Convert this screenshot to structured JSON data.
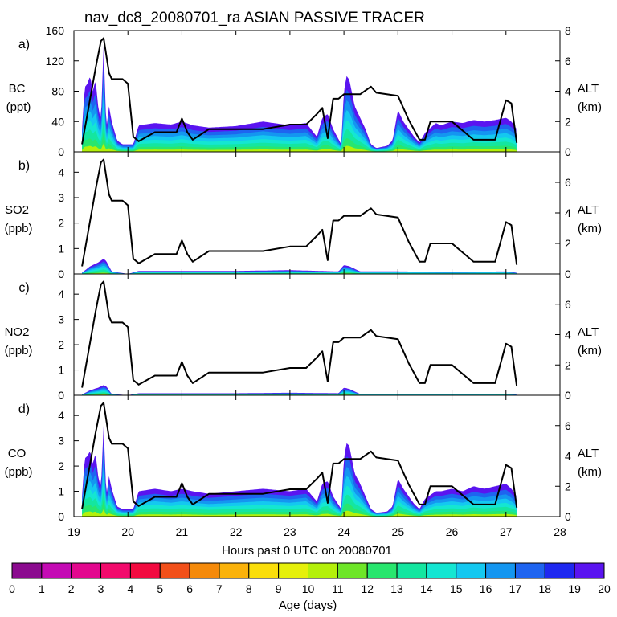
{
  "title": "nav_dc8_20080701_ra ASIAN PASSIVE TRACER",
  "xlabel": "Hours past 0 UTC on 20080701",
  "colorbar_label": "Age (days)",
  "colorbar_ticks": [
    "0",
    "1",
    "2",
    "3",
    "4",
    "5",
    "6",
    "7",
    "8",
    "9",
    "10",
    "11",
    "12",
    "13",
    "14",
    "15",
    "16",
    "17",
    "18",
    "19",
    "20"
  ],
  "colorbar_colors": [
    "#8b0a8f",
    "#c40ab4",
    "#e3078e",
    "#f20a6c",
    "#f20a40",
    "#f2501a",
    "#f58a0a",
    "#fab20a",
    "#fade0a",
    "#e6f00a",
    "#b4f00a",
    "#6ee628",
    "#28e66e",
    "#14e6a0",
    "#14e6d2",
    "#14c8f0",
    "#1496f0",
    "#1e64f0",
    "#1e28f0",
    "#5a14f0"
  ],
  "x_ticks": [
    "19",
    "20",
    "21",
    "22",
    "23",
    "24",
    "25",
    "26",
    "27",
    "28"
  ],
  "right_ticks_a": [
    "0",
    "2",
    "4",
    "6",
    "8"
  ],
  "right_ticks_bcd": [
    "0",
    "2",
    "4",
    "6"
  ],
  "alt_label": "ALT",
  "alt_unit": "(km)",
  "panels": [
    {
      "letter": "a)",
      "species": "BC",
      "unit": "(ppt)",
      "ticks": [
        "0",
        "40",
        "80",
        "120",
        "160"
      ]
    },
    {
      "letter": "b)",
      "species": "SO2",
      "unit": "(ppb)",
      "ticks": [
        "0",
        "1",
        "2",
        "3",
        "4"
      ]
    },
    {
      "letter": "c)",
      "species": "NO2",
      "unit": "(ppb)",
      "ticks": [
        "0",
        "1",
        "2",
        "3",
        "4"
      ]
    },
    {
      "letter": "d)",
      "species": "CO",
      "unit": "(ppb)",
      "ticks": [
        "0",
        "1",
        "2",
        "3",
        "4"
      ]
    }
  ],
  "chart_data": [
    {
      "type": "area",
      "title": "nav_dc8_20080701_ra ASIAN PASSIVE TRACER",
      "panel": "a)",
      "ylabel": "BC (ppt)",
      "y2label": "ALT (km)",
      "xlim": [
        19,
        28
      ],
      "ylim": [
        0,
        160
      ],
      "y2lim": [
        0,
        8
      ],
      "series": [
        {
          "name": "BC",
          "x": [
            19.15,
            19.2,
            19.25,
            19.3,
            19.35,
            19.4,
            19.45,
            19.5,
            19.55,
            19.6,
            19.65,
            19.7,
            19.8,
            19.9,
            20.0,
            20.1,
            20.2,
            20.5,
            20.8,
            21.0,
            21.2,
            21.5,
            22.0,
            22.5,
            23.0,
            23.3,
            23.5,
            23.6,
            23.7,
            23.8,
            23.95,
            24.0,
            24.05,
            24.1,
            24.2,
            24.3,
            24.4,
            24.5,
            24.6,
            24.8,
            24.9,
            25.0,
            25.1,
            25.2,
            25.3,
            25.4,
            25.5,
            25.7,
            25.8,
            26.0,
            26.2,
            26.4,
            26.6,
            26.8,
            27.0,
            27.1,
            27.2
          ],
          "y": [
            30,
            85,
            90,
            100,
            80,
            95,
            60,
            40,
            140,
            30,
            60,
            40,
            15,
            10,
            10,
            10,
            35,
            38,
            36,
            40,
            35,
            32,
            34,
            40,
            35,
            38,
            20,
            45,
            50,
            30,
            10,
            80,
            100,
            95,
            60,
            45,
            30,
            10,
            5,
            8,
            15,
            55,
            40,
            30,
            20,
            12,
            25,
            38,
            35,
            40,
            38,
            42,
            40,
            42,
            45,
            40,
            30
          ]
        },
        {
          "name": "ALT",
          "x": [
            19.15,
            19.3,
            19.4,
            19.5,
            19.55,
            19.65,
            19.7,
            19.8,
            19.9,
            20.0,
            20.1,
            20.2,
            20.5,
            20.9,
            21.0,
            21.1,
            21.2,
            21.5,
            21.7,
            22.0,
            22.5,
            23.0,
            23.3,
            23.5,
            23.6,
            23.7,
            23.8,
            23.9,
            24.0,
            24.3,
            24.5,
            24.6,
            25.0,
            25.2,
            25.4,
            25.5,
            25.6,
            25.9,
            26.0,
            26.4,
            26.5,
            26.8,
            27.0,
            27.1,
            27.2
          ],
          "y": [
            0.5,
            3.5,
            5.5,
            7.3,
            7.5,
            5.2,
            4.8,
            4.8,
            4.8,
            4.5,
            1.0,
            0.7,
            1.3,
            1.3,
            2.2,
            1.3,
            0.8,
            1.5,
            1.5,
            1.5,
            1.5,
            1.8,
            1.8,
            2.5,
            2.9,
            0.9,
            3.5,
            3.5,
            3.8,
            3.8,
            4.3,
            3.9,
            3.7,
            2.1,
            0.8,
            0.8,
            2.0,
            2.0,
            2.0,
            0.8,
            0.8,
            0.8,
            3.4,
            3.2,
            0.6
          ]
        }
      ]
    },
    {
      "type": "area",
      "panel": "b)",
      "ylabel": "SO2 (ppb)",
      "y2label": "ALT (km)",
      "xlim": [
        19,
        28
      ],
      "ylim": [
        0,
        4.8
      ],
      "y2lim": [
        0,
        8
      ],
      "series": [
        {
          "name": "SO2",
          "x": [
            19.15,
            19.3,
            19.45,
            19.55,
            19.6,
            19.7,
            20.0,
            20.2,
            21.0,
            22.0,
            23.0,
            23.9,
            24.0,
            24.1,
            24.3,
            25.0,
            26.0,
            27.0,
            27.2
          ],
          "y": [
            0.05,
            0.3,
            0.45,
            0.6,
            0.5,
            0.1,
            0.0,
            0.12,
            0.12,
            0.12,
            0.15,
            0.1,
            0.35,
            0.3,
            0.1,
            0.1,
            0.08,
            0.1,
            0.05
          ]
        },
        {
          "name": "ALT",
          "x": [
            19.15,
            19.3,
            19.4,
            19.5,
            19.55,
            19.65,
            19.7,
            19.8,
            19.9,
            20.0,
            20.1,
            20.2,
            20.5,
            20.9,
            21.0,
            21.1,
            21.2,
            21.5,
            21.7,
            22.0,
            22.5,
            23.0,
            23.3,
            23.5,
            23.6,
            23.7,
            23.8,
            23.9,
            24.0,
            24.3,
            24.5,
            24.6,
            25.0,
            25.2,
            25.4,
            25.5,
            25.6,
            25.9,
            26.0,
            26.4,
            26.5,
            26.8,
            27.0,
            27.1,
            27.2
          ],
          "y": [
            0.5,
            3.5,
            5.5,
            7.3,
            7.5,
            5.2,
            4.8,
            4.8,
            4.8,
            4.5,
            1.0,
            0.7,
            1.3,
            1.3,
            2.2,
            1.3,
            0.8,
            1.5,
            1.5,
            1.5,
            1.5,
            1.8,
            1.8,
            2.5,
            2.9,
            0.9,
            3.5,
            3.5,
            3.8,
            3.8,
            4.3,
            3.9,
            3.7,
            2.1,
            0.8,
            0.8,
            2.0,
            2.0,
            2.0,
            0.8,
            0.8,
            0.8,
            3.4,
            3.2,
            0.6
          ]
        }
      ]
    },
    {
      "type": "area",
      "panel": "c)",
      "ylabel": "NO2 (ppb)",
      "y2label": "ALT (km)",
      "xlim": [
        19,
        28
      ],
      "ylim": [
        0,
        4.8
      ],
      "y2lim": [
        0,
        8
      ],
      "series": [
        {
          "name": "NO2",
          "x": [
            19.15,
            19.3,
            19.45,
            19.55,
            19.6,
            19.7,
            20.0,
            20.2,
            21.0,
            22.0,
            23.0,
            23.9,
            24.0,
            24.1,
            24.3,
            25.0,
            26.0,
            27.0,
            27.2
          ],
          "y": [
            0.03,
            0.2,
            0.3,
            0.4,
            0.35,
            0.05,
            0.0,
            0.08,
            0.08,
            0.08,
            0.1,
            0.08,
            0.3,
            0.25,
            0.05,
            0.05,
            0.05,
            0.06,
            0.03
          ]
        },
        {
          "name": "ALT",
          "x": [
            19.15,
            19.3,
            19.4,
            19.5,
            19.55,
            19.65,
            19.7,
            19.8,
            19.9,
            20.0,
            20.1,
            20.2,
            20.5,
            20.9,
            21.0,
            21.1,
            21.2,
            21.5,
            21.7,
            22.0,
            22.5,
            23.0,
            23.3,
            23.5,
            23.6,
            23.7,
            23.8,
            23.9,
            24.0,
            24.3,
            24.5,
            24.6,
            25.0,
            25.2,
            25.4,
            25.5,
            25.6,
            25.9,
            26.0,
            26.4,
            26.5,
            26.8,
            27.0,
            27.1,
            27.2
          ],
          "y": [
            0.5,
            3.5,
            5.5,
            7.3,
            7.5,
            5.2,
            4.8,
            4.8,
            4.8,
            4.5,
            1.0,
            0.7,
            1.3,
            1.3,
            2.2,
            1.3,
            0.8,
            1.5,
            1.5,
            1.5,
            1.5,
            1.8,
            1.8,
            2.5,
            2.9,
            0.9,
            3.5,
            3.5,
            3.8,
            3.8,
            4.3,
            3.9,
            3.7,
            2.1,
            0.8,
            0.8,
            2.0,
            2.0,
            2.0,
            0.8,
            0.8,
            0.8,
            3.4,
            3.2,
            0.6
          ]
        }
      ]
    },
    {
      "type": "area",
      "panel": "d)",
      "ylabel": "CO (ppb)",
      "y2label": "ALT (km)",
      "xlim": [
        19,
        28
      ],
      "ylim": [
        0,
        4.8
      ],
      "y2lim": [
        0,
        8
      ],
      "series": [
        {
          "name": "CO",
          "x": [
            19.15,
            19.2,
            19.25,
            19.3,
            19.35,
            19.4,
            19.45,
            19.5,
            19.55,
            19.6,
            19.65,
            19.7,
            19.8,
            19.9,
            20.0,
            20.1,
            20.2,
            20.5,
            20.8,
            21.0,
            21.2,
            21.5,
            22.0,
            22.5,
            23.0,
            23.3,
            23.5,
            23.6,
            23.7,
            23.8,
            23.95,
            24.0,
            24.05,
            24.1,
            24.2,
            24.3,
            24.4,
            24.5,
            24.6,
            24.8,
            24.9,
            25.0,
            25.1,
            25.2,
            25.3,
            25.4,
            25.5,
            25.7,
            25.8,
            26.0,
            26.2,
            26.4,
            26.6,
            26.8,
            27.0,
            27.1,
            27.2
          ],
          "y": [
            0.8,
            2.3,
            2.4,
            2.6,
            2.1,
            2.5,
            1.6,
            1.1,
            3.6,
            0.8,
            1.6,
            1.1,
            0.4,
            0.3,
            0.3,
            0.3,
            1.0,
            1.1,
            1.0,
            1.1,
            1.0,
            0.9,
            1.0,
            1.1,
            1.0,
            1.1,
            0.6,
            1.3,
            1.4,
            0.8,
            0.3,
            2.3,
            2.9,
            2.8,
            1.7,
            1.3,
            0.8,
            0.3,
            0.15,
            0.2,
            0.4,
            1.5,
            1.1,
            0.8,
            0.5,
            0.3,
            0.7,
            1.0,
            1.0,
            1.1,
            1.0,
            1.2,
            1.1,
            1.2,
            1.3,
            1.1,
            0.8
          ]
        },
        {
          "name": "ALT",
          "x": [
            19.15,
            19.3,
            19.4,
            19.5,
            19.55,
            19.65,
            19.7,
            19.8,
            19.9,
            20.0,
            20.1,
            20.2,
            20.5,
            20.9,
            21.0,
            21.1,
            21.2,
            21.5,
            21.7,
            22.0,
            22.5,
            23.0,
            23.3,
            23.5,
            23.6,
            23.7,
            23.8,
            23.9,
            24.0,
            24.3,
            24.5,
            24.6,
            25.0,
            25.2,
            25.4,
            25.5,
            25.6,
            25.9,
            26.0,
            26.4,
            26.5,
            26.8,
            27.0,
            27.1,
            27.2
          ],
          "y": [
            0.5,
            3.5,
            5.5,
            7.3,
            7.5,
            5.2,
            4.8,
            4.8,
            4.8,
            4.5,
            1.0,
            0.7,
            1.3,
            1.3,
            2.2,
            1.3,
            0.8,
            1.5,
            1.5,
            1.5,
            1.5,
            1.8,
            1.8,
            2.5,
            2.9,
            0.9,
            3.5,
            3.5,
            3.8,
            3.8,
            4.3,
            3.9,
            3.7,
            2.1,
            0.8,
            0.8,
            2.0,
            2.0,
            2.0,
            0.8,
            0.8,
            0.8,
            3.4,
            3.2,
            0.6
          ]
        }
      ]
    }
  ]
}
